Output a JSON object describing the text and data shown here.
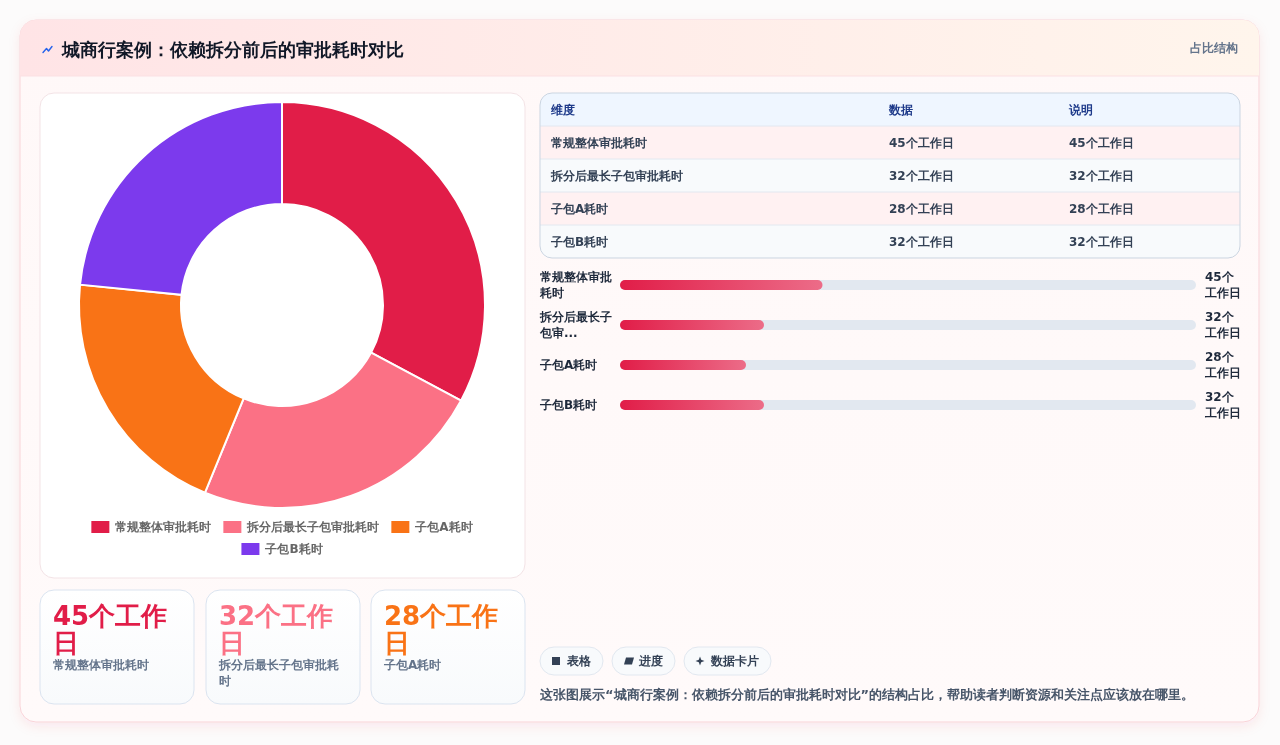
{
  "chart_data": [
    {
      "type": "other",
      "title": "城商行案例：依赖拆分前后的审批耗时对比",
      "subtitle": "占比结构"
    },
    {
      "type": "donut",
      "categories": [
        "常规整体审批耗时",
        "拆分后最长子包审批耗时",
        "子包A耗时",
        "子包B耗时"
      ],
      "values": [
        32.8,
        23.4,
        20.4,
        23.4
      ],
      "colors": [
        "#e11d48",
        "#fb7185",
        "#f97316",
        "#7c3aed"
      ],
      "legend": "bottom"
    },
    {
      "type": "other",
      "categories": [
        "维度",
        "数据",
        "说明"
      ],
      "cell_labels": [
        [
          "常规整体审批耗时",
          "45个工作日",
          "45个工作日"
        ],
        [
          "拆分后最长子包审批耗时",
          "32个工作日",
          "32个工作日"
        ],
        [
          "子包A耗时",
          "28个工作日",
          "28个工作日"
        ],
        [
          "子包B耗时",
          "32个工作日",
          "32个工作日"
        ]
      ]
    },
    {
      "type": "bar",
      "orientation": "horizontal",
      "categories": [
        "常规整体审批耗时",
        "拆分后最长子包审...",
        "子包A耗时",
        "子包B耗时"
      ],
      "values": [
        45,
        32,
        28,
        32
      ],
      "value_labels": [
        "45个工作日",
        "32个工作日",
        "28个工作日",
        "32个工作日"
      ],
      "color": "#e11d48",
      "xlim": [
        0,
        128
      ],
      "tick_labels": "y"
    },
    {
      "type": "other",
      "categories": [
        "常规整体审批耗时",
        "拆分后最长子包审批耗时",
        "子包A耗时"
      ],
      "value_labels": [
        "45个工作日",
        "32个工作日",
        "28个工作日"
      ],
      "colors": [
        "#e11d48",
        "#fb7185",
        "#f97316"
      ]
    },
    {
      "type": "other",
      "categories": [
        "表格",
        "进度",
        "数据卡片"
      ],
      "annotations": [
        "这张图展示“城商行案例：依赖拆分前后的审批耗时对比”的结构占比，帮助读者判断资源和关注点应该放在哪里。"
      ]
    }
  ]
}
